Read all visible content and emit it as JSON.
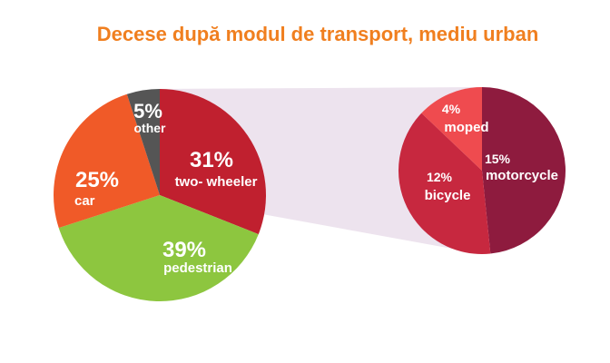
{
  "chart_data": [
    {
      "type": "pie",
      "title": "Decese după modul de transport, mediu urban",
      "title_color": "#F07F1F",
      "slices": [
        {
          "label": "two- wheeler",
          "value": 31,
          "display": "31%",
          "color": "#C0202F"
        },
        {
          "label": "pedestrian",
          "value": 39,
          "display": "39%",
          "color": "#8DC63F"
        },
        {
          "label": "car",
          "value": 25,
          "display": "25%",
          "color": "#F05A28"
        },
        {
          "label": "other",
          "value": 5,
          "display": "5%",
          "color": "#555555"
        }
      ]
    },
    {
      "type": "pie",
      "breakdown_of": "two- wheeler",
      "slices": [
        {
          "label": "motorcycle",
          "value": 15,
          "display": "15%",
          "color": "#8E1B3E"
        },
        {
          "label": "bicycle",
          "value": 12,
          "display": "12%",
          "color": "#C7283F"
        },
        {
          "label": "moped",
          "value": 4,
          "display": "4%",
          "color": "#EF4B4F"
        }
      ]
    }
  ],
  "connector_color": "#EDE3EE"
}
